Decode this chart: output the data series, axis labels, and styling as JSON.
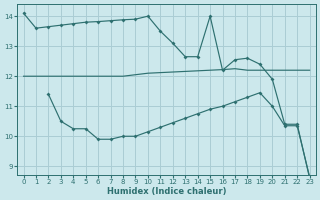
{
  "xlabel": "Humidex (Indice chaleur)",
  "xlim": [
    -0.5,
    23.5
  ],
  "ylim": [
    8.7,
    14.4
  ],
  "yticks": [
    9,
    10,
    11,
    12,
    13,
    14
  ],
  "xticks": [
    0,
    1,
    2,
    3,
    4,
    5,
    6,
    7,
    8,
    9,
    10,
    11,
    12,
    13,
    14,
    15,
    16,
    17,
    18,
    19,
    20,
    21,
    22,
    23
  ],
  "bg_color": "#cce8ec",
  "grid_color": "#aacdd4",
  "line_color": "#2e7070",
  "line1_x": [
    0,
    1,
    2,
    3,
    4,
    5,
    6,
    7,
    8,
    9,
    10,
    11,
    12,
    13,
    14,
    15,
    16,
    17,
    18,
    19,
    20,
    21,
    22,
    23
  ],
  "line1_y": [
    14.1,
    13.6,
    13.65,
    13.7,
    13.75,
    13.8,
    13.82,
    13.85,
    13.88,
    13.9,
    14.0,
    13.5,
    13.1,
    12.65,
    12.65,
    14.0,
    12.2,
    12.55,
    12.6,
    12.4,
    11.9,
    10.4,
    10.4,
    8.6
  ],
  "line2_x": [
    0,
    1,
    2,
    3,
    4,
    5,
    6,
    7,
    8,
    9,
    10,
    11,
    12,
    13,
    14,
    15,
    16,
    17,
    18,
    19,
    20,
    21,
    22,
    23
  ],
  "line2_y": [
    12.0,
    12.0,
    12.0,
    12.0,
    12.0,
    12.0,
    12.0,
    12.0,
    12.0,
    12.05,
    12.1,
    12.12,
    12.14,
    12.16,
    12.18,
    12.2,
    12.22,
    12.25,
    12.2,
    12.2,
    12.2,
    12.2,
    12.2,
    12.2
  ],
  "line3_x": [
    2,
    3,
    4,
    5,
    6,
    7,
    8,
    9,
    10,
    11,
    12,
    13,
    14,
    15,
    16,
    17,
    18,
    19,
    20,
    21,
    22,
    23
  ],
  "line3_y": [
    11.4,
    10.5,
    10.25,
    10.25,
    9.9,
    9.9,
    10.0,
    10.0,
    10.15,
    10.3,
    10.45,
    10.6,
    10.75,
    10.9,
    11.0,
    11.15,
    11.3,
    11.45,
    11.0,
    10.35,
    10.35,
    8.65
  ]
}
